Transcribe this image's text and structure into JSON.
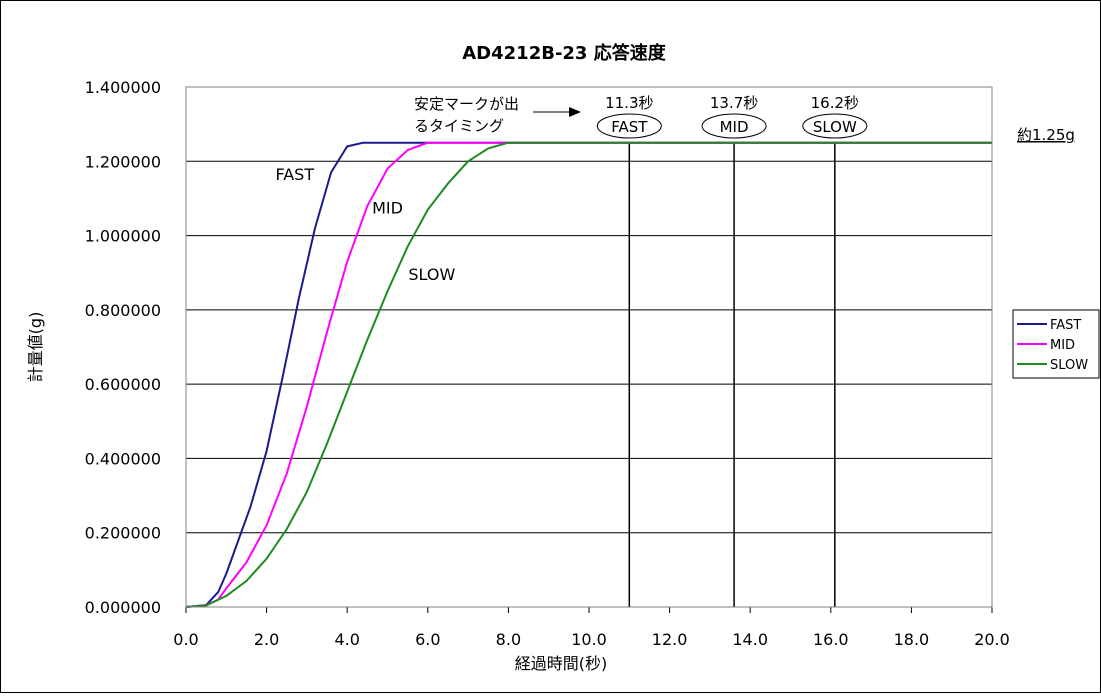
{
  "chart_data": {
    "type": "line",
    "title": "AD4212B-23 応答速度",
    "xlabel": "経過時間(秒)",
    "ylabel": "計量値(g)",
    "xlim": [
      0,
      20
    ],
    "ylim": [
      0,
      1.4
    ],
    "x_ticks": [
      "0.0",
      "2.0",
      "4.0",
      "6.0",
      "8.0",
      "10.0",
      "12.0",
      "14.0",
      "16.0",
      "18.0",
      "20.0"
    ],
    "y_ticks": [
      "0.000000",
      "0.200000",
      "0.400000",
      "0.600000",
      "0.800000",
      "1.000000",
      "1.200000",
      "1.400000"
    ],
    "grid": "horizontal",
    "legend_position": "right",
    "series": [
      {
        "name": "FAST",
        "color": "#1a1a8c",
        "x": [
          0.0,
          0.5,
          0.8,
          1.0,
          1.3,
          1.6,
          2.0,
          2.4,
          2.8,
          3.2,
          3.6,
          4.0,
          4.4,
          5.0,
          6.0,
          8.0,
          10.0,
          12.0,
          14.0,
          16.0,
          18.0,
          20.0
        ],
        "y": [
          0.0,
          0.005,
          0.04,
          0.09,
          0.18,
          0.27,
          0.42,
          0.62,
          0.83,
          1.02,
          1.17,
          1.24,
          1.25,
          1.25,
          1.25,
          1.25,
          1.25,
          1.25,
          1.25,
          1.25,
          1.25,
          1.25
        ]
      },
      {
        "name": "MID",
        "color": "#ff00ff",
        "x": [
          0.0,
          0.5,
          0.8,
          1.0,
          1.5,
          2.0,
          2.5,
          3.0,
          3.5,
          4.0,
          4.5,
          5.0,
          5.5,
          6.0,
          6.5,
          8.0,
          10.0,
          12.0,
          14.0,
          16.0,
          18.0,
          20.0
        ],
        "y": [
          0.0,
          0.005,
          0.02,
          0.05,
          0.12,
          0.22,
          0.36,
          0.54,
          0.74,
          0.93,
          1.08,
          1.18,
          1.23,
          1.25,
          1.25,
          1.25,
          1.25,
          1.25,
          1.25,
          1.25,
          1.25,
          1.25
        ]
      },
      {
        "name": "SLOW",
        "color": "#1f8a1f",
        "x": [
          0.0,
          0.5,
          1.0,
          1.5,
          2.0,
          2.5,
          3.0,
          3.5,
          4.0,
          4.5,
          5.0,
          5.5,
          6.0,
          6.5,
          7.0,
          7.5,
          8.0,
          8.5,
          10.0,
          12.0,
          14.0,
          16.0,
          18.0,
          20.0
        ],
        "y": [
          0.0,
          0.004,
          0.03,
          0.07,
          0.13,
          0.21,
          0.31,
          0.44,
          0.58,
          0.72,
          0.85,
          0.97,
          1.07,
          1.14,
          1.2,
          1.235,
          1.25,
          1.25,
          1.25,
          1.25,
          1.25,
          1.25,
          1.25,
          1.25
        ]
      }
    ],
    "vertical_markers": [
      {
        "x": 11.0,
        "time_label": "11.3秒",
        "mode_label": "FAST"
      },
      {
        "x": 13.6,
        "time_label": "13.7秒",
        "mode_label": "MID"
      },
      {
        "x": 16.1,
        "time_label": "16.2秒",
        "mode_label": "SLOW"
      }
    ],
    "curve_labels": [
      {
        "text": "FAST",
        "x": 2.7,
        "y": 1.15
      },
      {
        "text": "MID",
        "x": 5.0,
        "y": 1.06
      },
      {
        "text": "SLOW",
        "x": 6.1,
        "y": 0.88
      }
    ],
    "annotations": {
      "stable_mark_line1": "安定マークが出",
      "stable_mark_line2": "るタイミング",
      "right_value": "約1.25g"
    }
  }
}
